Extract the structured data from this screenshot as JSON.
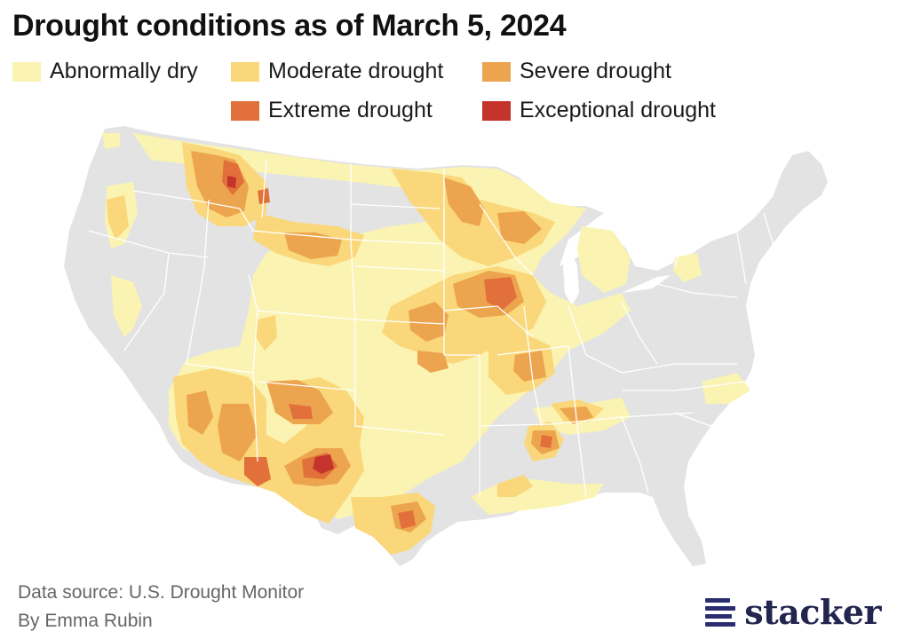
{
  "title": "Drought conditions as of March 5, 2024",
  "legend": [
    {
      "label": "Abnormally dry",
      "color": "#fbf3b1"
    },
    {
      "label": "Moderate drought",
      "color": "#f9d77a"
    },
    {
      "label": "Severe drought",
      "color": "#eca54e"
    },
    {
      "label": "Extreme drought",
      "color": "#e2703a"
    },
    {
      "label": "Exceptional drought",
      "color": "#c5332d"
    }
  ],
  "colors": {
    "land": "#e3e3e3",
    "borders": "#ffffff"
  },
  "footer": {
    "source": "Data source: U.S. Drought Monitor",
    "byline": "By Emma Rubin"
  },
  "logo": {
    "text": "stacker",
    "icon": "stacker-logo-icon"
  }
}
